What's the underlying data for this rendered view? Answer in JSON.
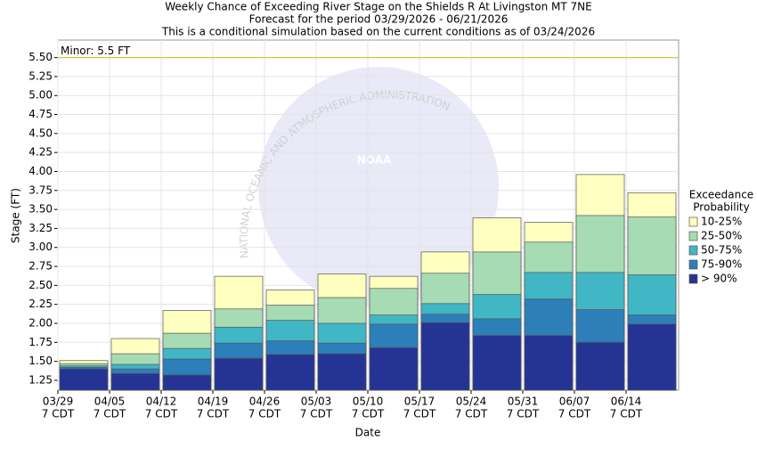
{
  "chart_data": {
    "type": "bar",
    "title": [
      "Weekly Chance of Exceeding River Stage on the Shields R At Livingston MT 7NE",
      "Forecast for the period 03/29/2026 - 06/21/2026",
      "This is a conditional simulation based on the current conditions as of 03/24/2026"
    ],
    "x_label": "Date",
    "y_label": "Stage (FT)",
    "categories": [
      "03/29",
      "04/05",
      "04/12",
      "04/19",
      "04/26",
      "05/03",
      "05/10",
      "05/17",
      "05/24",
      "05/31",
      "06/07",
      "06/14"
    ],
    "category_time": "7 CDT",
    "legend_title": [
      "Exceedance",
      "Probability"
    ],
    "series": [
      {
        "name": "10-25%",
        "color": "#ffffc0",
        "values": [
          1.51,
          1.8,
          2.17,
          2.62,
          2.44,
          2.65,
          2.62,
          2.94,
          3.39,
          3.33,
          3.96,
          3.72
        ]
      },
      {
        "name": "25-50%",
        "color": "#a6dbb4",
        "values": [
          1.47,
          1.6,
          1.87,
          2.19,
          2.24,
          2.34,
          2.46,
          2.66,
          2.94,
          3.07,
          3.42,
          3.4
        ]
      },
      {
        "name": "50-75%",
        "color": "#41b6c4",
        "values": [
          1.44,
          1.46,
          1.67,
          1.95,
          2.04,
          2.0,
          2.11,
          2.26,
          2.38,
          2.67,
          2.67,
          2.64
        ]
      },
      {
        "name": "75-90%",
        "color": "#2c7fb8",
        "values": [
          1.42,
          1.4,
          1.53,
          1.74,
          1.77,
          1.74,
          1.99,
          2.12,
          2.06,
          2.32,
          2.18,
          2.11
        ]
      },
      {
        "name": "> 90%",
        "color": "#253494",
        "values": [
          1.4,
          1.34,
          1.32,
          1.54,
          1.59,
          1.6,
          1.68,
          2.01,
          1.84,
          1.84,
          1.75,
          1.99
        ]
      }
    ],
    "ylim": [
      1.12,
      5.73
    ],
    "yticks": [
      1.25,
      {
        "value": 1.5,
        "label": "1.50"
      },
      1.75,
      {
        "value": 2.0,
        "label": "2.00"
      },
      2.25,
      {
        "value": 2.5,
        "label": "2.50"
      },
      2.75,
      {
        "value": 3.0,
        "label": "3.00"
      },
      3.25,
      {
        "value": 3.5,
        "label": "3.50"
      },
      3.75,
      {
        "value": 4.0,
        "label": "4.00"
      },
      4.25,
      {
        "value": 4.5,
        "label": "4.50"
      },
      4.75,
      {
        "value": 5.0,
        "label": "5.00"
      },
      5.25,
      {
        "value": 5.5,
        "label": "5.50"
      }
    ],
    "threshold": {
      "value": 5.5,
      "label": "Minor: 5.5 FT",
      "color": "#cccc33"
    },
    "grid": true,
    "watermark": {
      "logo": "NOAA",
      "arc": "NATIONAL OCEANIC AND ATMOSPHERIC ADMINISTRATION"
    }
  }
}
